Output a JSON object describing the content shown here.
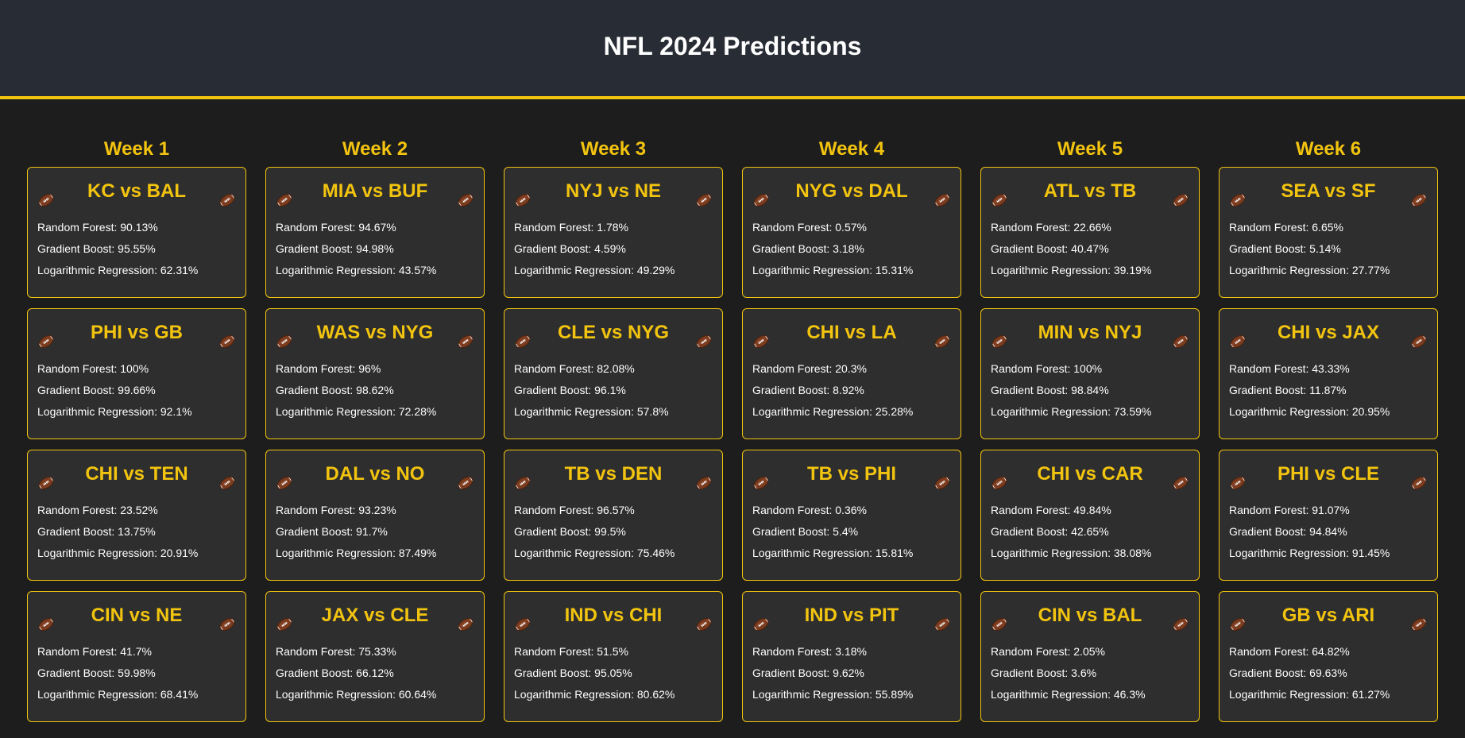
{
  "page": {
    "title": "NFL 2024 Predictions"
  },
  "labels": {
    "rf": "Random Forest: ",
    "gb": "Gradient Boost: ",
    "lr": "Logarithmic Regression: "
  },
  "colors": {
    "accent": "#f2c40f",
    "header_bg": "#282c34",
    "card_bg": "#2e2e2e",
    "page_bg": "#1d1d1d"
  },
  "icons": {
    "card_corner": "football-icon"
  },
  "weeks": [
    {
      "title": "Week 1",
      "games": [
        {
          "matchup": "KC vs BAL",
          "rf": "90.13%",
          "gb": "95.55%",
          "lr": "62.31%"
        },
        {
          "matchup": "PHI vs GB",
          "rf": "100%",
          "gb": "99.66%",
          "lr": "92.1%"
        },
        {
          "matchup": "CHI vs TEN",
          "rf": "23.52%",
          "gb": "13.75%",
          "lr": "20.91%"
        },
        {
          "matchup": "CIN vs NE",
          "rf": "41.7%",
          "gb": "59.98%",
          "lr": "68.41%"
        }
      ]
    },
    {
      "title": "Week 2",
      "games": [
        {
          "matchup": "MIA vs BUF",
          "rf": "94.67%",
          "gb": "94.98%",
          "lr": "43.57%"
        },
        {
          "matchup": "WAS vs NYG",
          "rf": "96%",
          "gb": "98.62%",
          "lr": "72.28%"
        },
        {
          "matchup": "DAL vs NO",
          "rf": "93.23%",
          "gb": "91.7%",
          "lr": "87.49%"
        },
        {
          "matchup": "JAX vs CLE",
          "rf": "75.33%",
          "gb": "66.12%",
          "lr": "60.64%"
        }
      ]
    },
    {
      "title": "Week 3",
      "games": [
        {
          "matchup": "NYJ vs NE",
          "rf": "1.78%",
          "gb": "4.59%",
          "lr": "49.29%"
        },
        {
          "matchup": "CLE vs NYG",
          "rf": "82.08%",
          "gb": "96.1%",
          "lr": "57.8%"
        },
        {
          "matchup": "TB vs DEN",
          "rf": "96.57%",
          "gb": "99.5%",
          "lr": "75.46%"
        },
        {
          "matchup": "IND vs CHI",
          "rf": "51.5%",
          "gb": "95.05%",
          "lr": "80.62%"
        }
      ]
    },
    {
      "title": "Week 4",
      "games": [
        {
          "matchup": "NYG vs DAL",
          "rf": "0.57%",
          "gb": "3.18%",
          "lr": "15.31%"
        },
        {
          "matchup": "CHI vs LA",
          "rf": "20.3%",
          "gb": "8.92%",
          "lr": "25.28%"
        },
        {
          "matchup": "TB vs PHI",
          "rf": "0.36%",
          "gb": "5.4%",
          "lr": "15.81%"
        },
        {
          "matchup": "IND vs PIT",
          "rf": "3.18%",
          "gb": "9.62%",
          "lr": "55.89%"
        }
      ]
    },
    {
      "title": "Week 5",
      "games": [
        {
          "matchup": "ATL vs TB",
          "rf": "22.66%",
          "gb": "40.47%",
          "lr": "39.19%"
        },
        {
          "matchup": "MIN vs NYJ",
          "rf": "100%",
          "gb": "98.84%",
          "lr": "73.59%"
        },
        {
          "matchup": "CHI vs CAR",
          "rf": "49.84%",
          "gb": "42.65%",
          "lr": "38.08%"
        },
        {
          "matchup": "CIN vs BAL",
          "rf": "2.05%",
          "gb": "3.6%",
          "lr": "46.3%"
        }
      ]
    },
    {
      "title": "Week 6",
      "games": [
        {
          "matchup": "SEA vs SF",
          "rf": "6.65%",
          "gb": "5.14%",
          "lr": "27.77%"
        },
        {
          "matchup": "CHI vs JAX",
          "rf": "43.33%",
          "gb": "11.87%",
          "lr": "20.95%"
        },
        {
          "matchup": "PHI vs CLE",
          "rf": "91.07%",
          "gb": "94.84%",
          "lr": "91.45%"
        },
        {
          "matchup": "GB vs ARI",
          "rf": "64.82%",
          "gb": "69.63%",
          "lr": "61.27%"
        }
      ]
    }
  ]
}
